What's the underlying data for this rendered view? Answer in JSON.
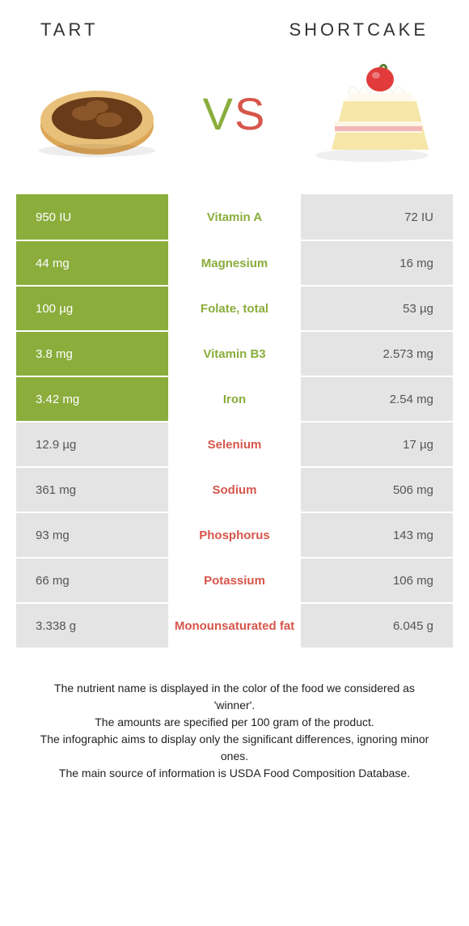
{
  "header": {
    "left_title": "Tart",
    "right_title": "Shortcake",
    "vs": {
      "v": "V",
      "s": "S",
      "v_color": "#8aad3c",
      "s_color": "#d6564b"
    }
  },
  "colors": {
    "left_winner_bg": "#8aad3c",
    "left_loser_bg": "#e4e4e4",
    "mid_bg": "#ffffff",
    "right_bg": "#e4e4e4",
    "left_nutrient_text": "#8aad3c",
    "right_nutrient_text": "#d6564b",
    "left_value_text_win": "#ffffff",
    "left_value_text_lose": "#555555",
    "right_value_text": "#555555",
    "row_border": "#ffffff"
  },
  "rows": [
    {
      "nutrient": "Vitamin A",
      "left": "950 IU",
      "right": "72 IU",
      "winner": "left"
    },
    {
      "nutrient": "Magnesium",
      "left": "44 mg",
      "right": "16 mg",
      "winner": "left"
    },
    {
      "nutrient": "Folate, total",
      "left": "100 µg",
      "right": "53 µg",
      "winner": "left"
    },
    {
      "nutrient": "Vitamin B3",
      "left": "3.8 mg",
      "right": "2.573 mg",
      "winner": "left"
    },
    {
      "nutrient": "Iron",
      "left": "3.42 mg",
      "right": "2.54 mg",
      "winner": "left"
    },
    {
      "nutrient": "Selenium",
      "left": "12.9 µg",
      "right": "17 µg",
      "winner": "right"
    },
    {
      "nutrient": "Sodium",
      "left": "361 mg",
      "right": "506 mg",
      "winner": "right"
    },
    {
      "nutrient": "Phosphorus",
      "left": "93 mg",
      "right": "143 mg",
      "winner": "right"
    },
    {
      "nutrient": "Potassium",
      "left": "66 mg",
      "right": "106 mg",
      "winner": "right"
    },
    {
      "nutrient": "Monounsaturated fat",
      "left": "3.338 g",
      "right": "6.045 g",
      "winner": "right"
    }
  ],
  "footnotes": [
    "The nutrient name is displayed in the color of the food we considered as 'winner'.",
    "The amounts are specified per 100 gram of the product.",
    "The infographic aims to display only the significant differences, ignoring minor ones.",
    "The main source of information is USDA Food Composition Database."
  ]
}
